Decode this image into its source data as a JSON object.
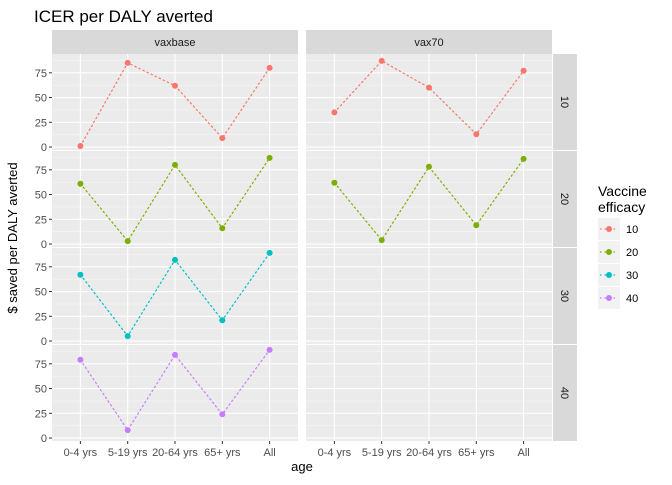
{
  "chart_data": {
    "type": "line",
    "title": "ICER per DALY averted",
    "xlabel": "age",
    "ylabel": "$ saved per DALY averted",
    "categories": [
      "0-4 yrs",
      "5-19 yrs",
      "20-64 yrs",
      "65+ yrs",
      "All"
    ],
    "ylim": [
      -3,
      94
    ],
    "yticks": [
      0,
      25,
      50,
      75
    ],
    "facet_columns": [
      "vaxbase",
      "vax70"
    ],
    "facet_rows": [
      "10",
      "20",
      "30",
      "40"
    ],
    "grid": true,
    "legend": {
      "title": "Vaccine efficacy",
      "placement": "right",
      "entries": [
        "10",
        "20",
        "30",
        "40"
      ]
    },
    "series_colors": {
      "10": "#F8766D",
      "20": "#7CAE00",
      "30": "#00BFC4",
      "40": "#C77CFF"
    },
    "panels": [
      {
        "column": "vaxbase",
        "row": "10",
        "series": "10",
        "values": [
          1,
          85,
          62,
          9,
          80
        ]
      },
      {
        "column": "vax70",
        "row": "10",
        "series": "10",
        "values": [
          35,
          87,
          60,
          13,
          77
        ]
      },
      {
        "column": "vaxbase",
        "row": "20",
        "series": "20",
        "values": [
          61,
          3,
          80,
          16,
          87
        ]
      },
      {
        "column": "vax70",
        "row": "20",
        "series": "20",
        "values": [
          62,
          4,
          78,
          19,
          86
        ]
      },
      {
        "column": "vaxbase",
        "row": "30",
        "series": "30",
        "values": [
          67,
          5,
          82,
          21,
          89
        ]
      },
      {
        "column": "vaxbase",
        "row": "40",
        "series": "40",
        "values": [
          79,
          8,
          84,
          24,
          89
        ]
      }
    ]
  }
}
